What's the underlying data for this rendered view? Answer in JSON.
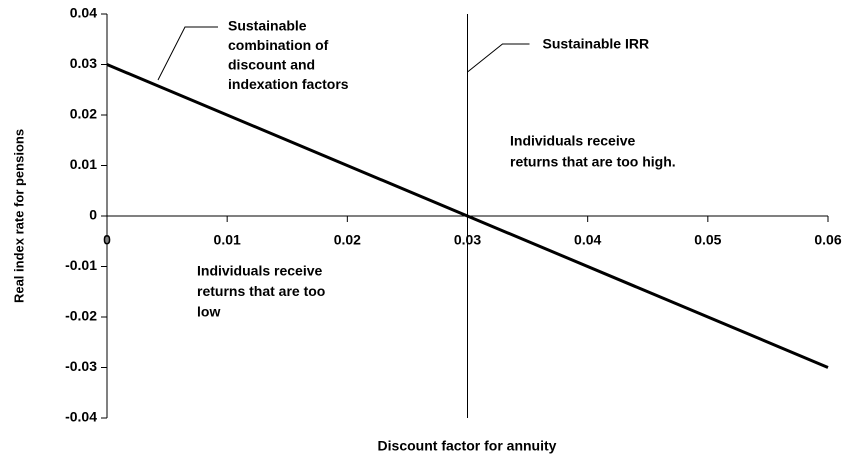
{
  "chart_data": {
    "type": "line",
    "x_label": "Discount factor for annuity",
    "y_label": "Real index rate for pensions",
    "x": [
      0,
      0.06
    ],
    "series": [
      {
        "name": "Sustainable combination of discount and indexation factors",
        "color": "#000000",
        "values": [
          0.03,
          -0.03
        ]
      }
    ],
    "reference_x": 0.03,
    "reference_label": "Sustainable IRR",
    "annotations": [
      {
        "lines": [
          "Sustainable",
          "combination of",
          "discount and",
          "indexation factors"
        ]
      },
      {
        "lines": [
          "Individuals receive",
          "returns that are too high."
        ]
      },
      {
        "lines": [
          "Individuals receive",
          "returns that are too",
          "low"
        ]
      }
    ],
    "xlim": [
      0,
      0.06
    ],
    "xticks": [
      0,
      0.01,
      0.02,
      0.03,
      0.04,
      0.05,
      0.06
    ],
    "ylim": [
      -0.04,
      0.04
    ],
    "yticks": [
      0.04,
      0.03,
      0.02,
      0.01,
      0,
      -0.01,
      -0.02,
      -0.03,
      -0.04
    ]
  }
}
